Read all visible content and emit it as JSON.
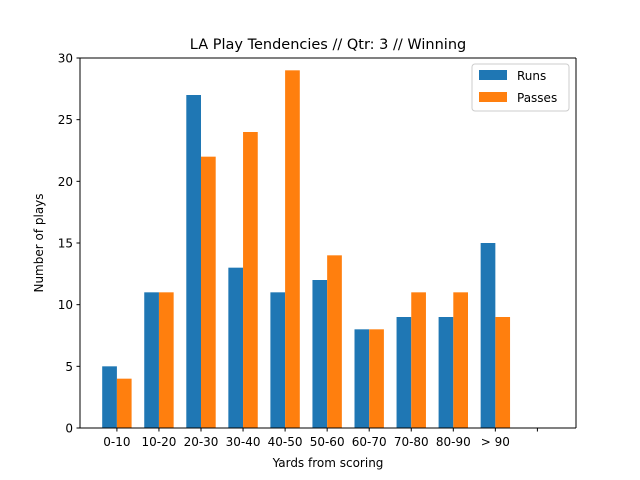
{
  "chart_data": {
    "type": "bar",
    "title": "LA Play Tendencies // Qtr: 3 // Winning",
    "xlabel": "Yards from scoring",
    "ylabel": "Number of plays",
    "categories": [
      "0-10",
      "10-20",
      "20-30",
      "30-40",
      "40-50",
      "50-60",
      "60-70",
      "70-80",
      "80-90",
      "> 90",
      ""
    ],
    "series": [
      {
        "name": "Runs",
        "color": "#1f77b4",
        "values": [
          5,
          11,
          27,
          13,
          11,
          12,
          8,
          9,
          9,
          15,
          null
        ]
      },
      {
        "name": "Passes",
        "color": "#ff7f0e",
        "values": [
          4,
          11,
          22,
          24,
          29,
          14,
          8,
          11,
          11,
          9,
          null
        ]
      }
    ],
    "ylim": [
      0,
      30
    ],
    "yticks": [
      0,
      5,
      10,
      15,
      20,
      25,
      30
    ],
    "grid": false,
    "legend_position": "top-right"
  }
}
